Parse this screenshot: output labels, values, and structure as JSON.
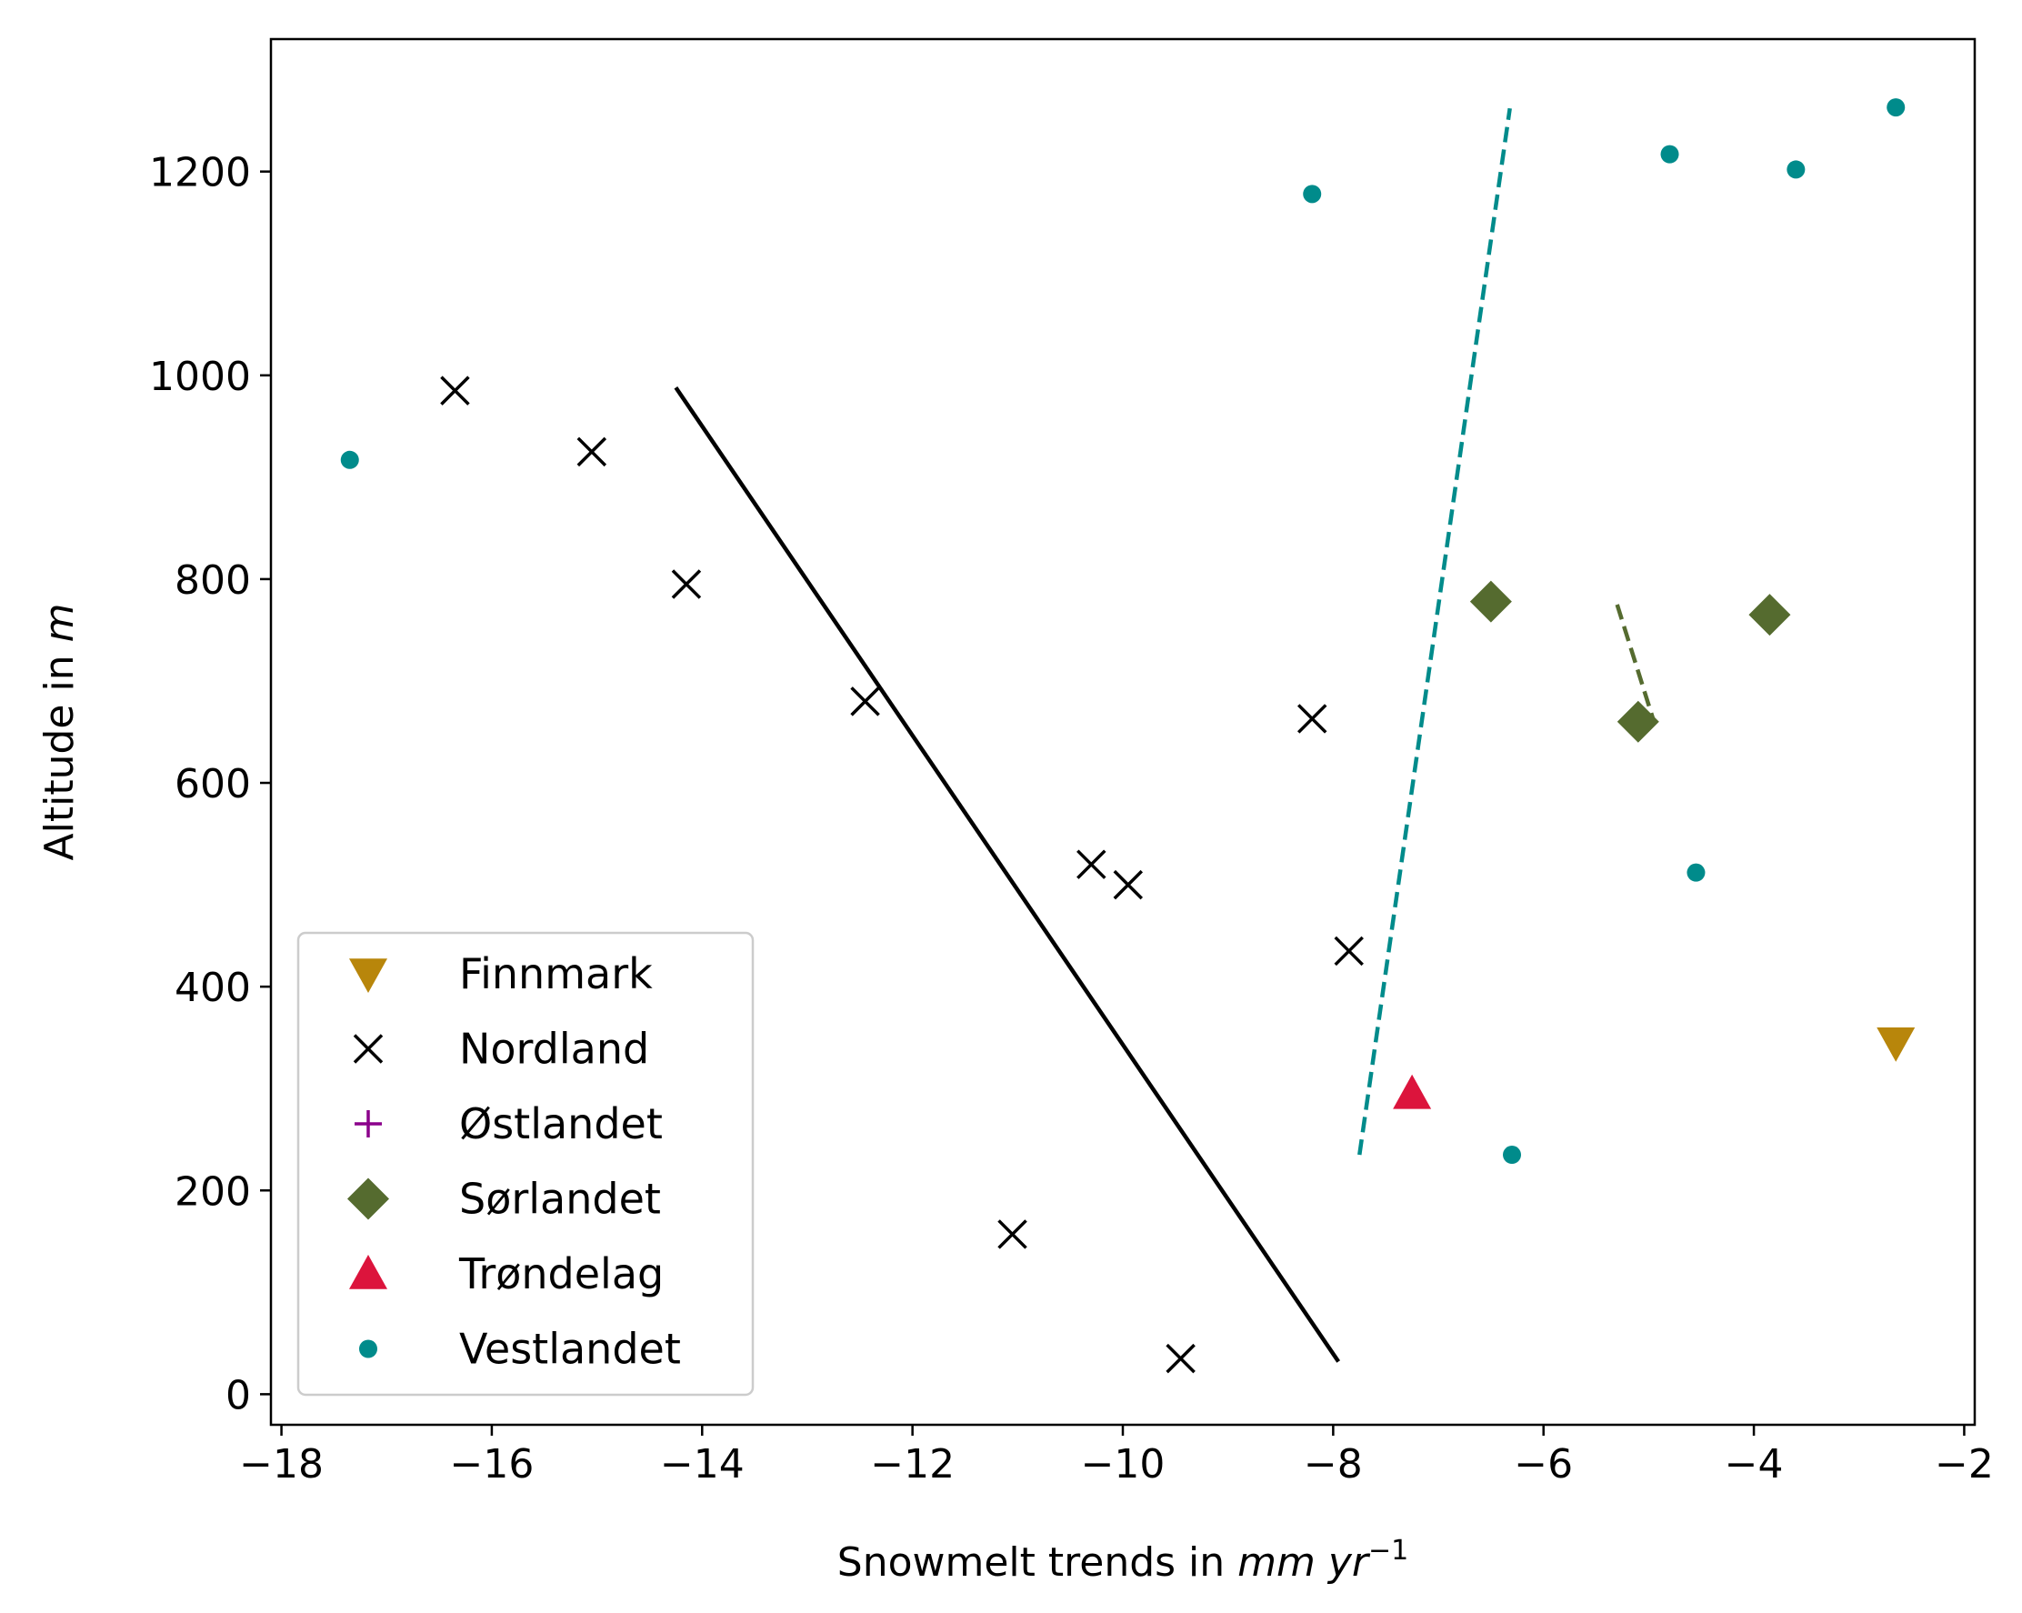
{
  "chart_data": {
    "type": "scatter",
    "xlabel": "Snowmelt trends in ",
    "xlabel_italic": "mm yr",
    "xlabel_sup": "−1",
    "ylabel": "Altitude in ",
    "ylabel_italic": "m",
    "xlim": [
      -18.1,
      -1.9
    ],
    "ylim": [
      -30,
      1330
    ],
    "x_ticks": [
      -18,
      -16,
      -14,
      -12,
      -10,
      -8,
      -6,
      -4,
      -2
    ],
    "x_tick_labels": [
      "−18",
      "−16",
      "−14",
      "−12",
      "−10",
      "−8",
      "−6",
      "−4",
      "−2"
    ],
    "y_ticks": [
      0,
      200,
      400,
      600,
      800,
      1000,
      1200
    ],
    "y_tick_labels": [
      "0",
      "200",
      "400",
      "600",
      "800",
      "1000",
      "1200"
    ],
    "grid": false,
    "legend_position": "lower-left",
    "series": [
      {
        "name": "Finnmark",
        "marker": "triangle-down-icon",
        "color": "#b8860b",
        "points": [
          [
            -2.65,
            345
          ]
        ]
      },
      {
        "name": "Nordland",
        "marker": "x-icon",
        "color": "#000000",
        "points": [
          [
            -16.35,
            985
          ],
          [
            -15.05,
            925
          ],
          [
            -14.15,
            795
          ],
          [
            -12.45,
            680
          ],
          [
            -10.3,
            520
          ],
          [
            -9.95,
            500
          ],
          [
            -8.2,
            663
          ],
          [
            -7.85,
            435
          ],
          [
            -11.05,
            157
          ],
          [
            -9.45,
            35
          ]
        ]
      },
      {
        "name": "Østlandet",
        "marker": "plus-icon",
        "color": "#8b008b",
        "points": []
      },
      {
        "name": "Sørlandet",
        "marker": "diamond-icon",
        "color": "#556b2f",
        "points": [
          [
            -6.5,
            778
          ],
          [
            -5.1,
            660
          ],
          [
            -3.85,
            765
          ]
        ]
      },
      {
        "name": "Trøndelag",
        "marker": "triangle-up-icon",
        "color": "#dc143c",
        "points": [
          [
            -7.25,
            295
          ]
        ]
      },
      {
        "name": "Vestlandet",
        "marker": "dot-icon",
        "color": "#008b8b",
        "points": [
          [
            -17.35,
            917
          ],
          [
            -8.2,
            1178
          ],
          [
            -4.8,
            1217
          ],
          [
            -3.6,
            1202
          ],
          [
            -2.65,
            1263
          ],
          [
            -4.55,
            512
          ],
          [
            -6.3,
            235
          ]
        ]
      }
    ],
    "trend_lines": [
      {
        "series": "Nordland",
        "style": "solid",
        "color": "#000000",
        "points": [
          [
            -14.25,
            988
          ],
          [
            -7.95,
            32
          ]
        ]
      },
      {
        "series": "Vestlandet",
        "style": "dashed",
        "color": "#008b8b",
        "points": [
          [
            -7.75,
            235
          ],
          [
            -6.32,
            1262
          ]
        ]
      },
      {
        "series": "Sørlandet",
        "style": "dashed",
        "color": "#556b2f",
        "points": [
          [
            -5.3,
            775
          ],
          [
            -4.95,
            660
          ]
        ]
      }
    ]
  }
}
